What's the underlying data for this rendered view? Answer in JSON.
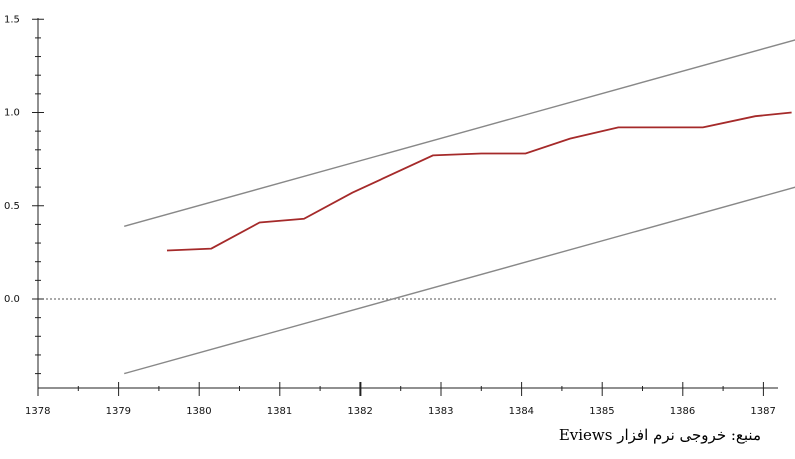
{
  "chart_data": {
    "type": "line",
    "x_ticks": [
      "1378",
      "1379",
      "1380",
      "1381",
      "1382",
      "1383",
      "1384",
      "1385",
      "1386",
      "1387"
    ],
    "y_ticks": [
      "0.0",
      "0.5",
      "1.0",
      "1.5"
    ],
    "xlim": [
      1378,
      1387.4
    ],
    "ylim": [
      -0.5,
      1.5
    ],
    "zero_line": 0.0,
    "series": [
      {
        "role": "statistic",
        "color": "#a52a2a",
        "points": [
          [
            1379.6,
            0.26
          ],
          [
            1380.15,
            0.27
          ],
          [
            1380.75,
            0.41
          ],
          [
            1381.3,
            0.43
          ],
          [
            1381.9,
            0.57
          ],
          [
            1382.9,
            0.77
          ],
          [
            1383.5,
            0.78
          ],
          [
            1384.05,
            0.78
          ],
          [
            1384.6,
            0.86
          ],
          [
            1385.2,
            0.92
          ],
          [
            1385.75,
            0.92
          ],
          [
            1386.25,
            0.92
          ],
          [
            1386.9,
            0.98
          ],
          [
            1387.35,
            1.0
          ]
        ]
      },
      {
        "role": "upper-bound",
        "color": "#888888",
        "points": [
          [
            1379.07,
            0.39
          ],
          [
            1387.4,
            1.39
          ]
        ]
      },
      {
        "role": "lower-bound",
        "color": "#888888",
        "points": [
          [
            1379.07,
            -0.4
          ],
          [
            1387.4,
            0.6
          ]
        ]
      }
    ]
  },
  "source_note": "منبع: خروجی نرم افزار  Eviews"
}
